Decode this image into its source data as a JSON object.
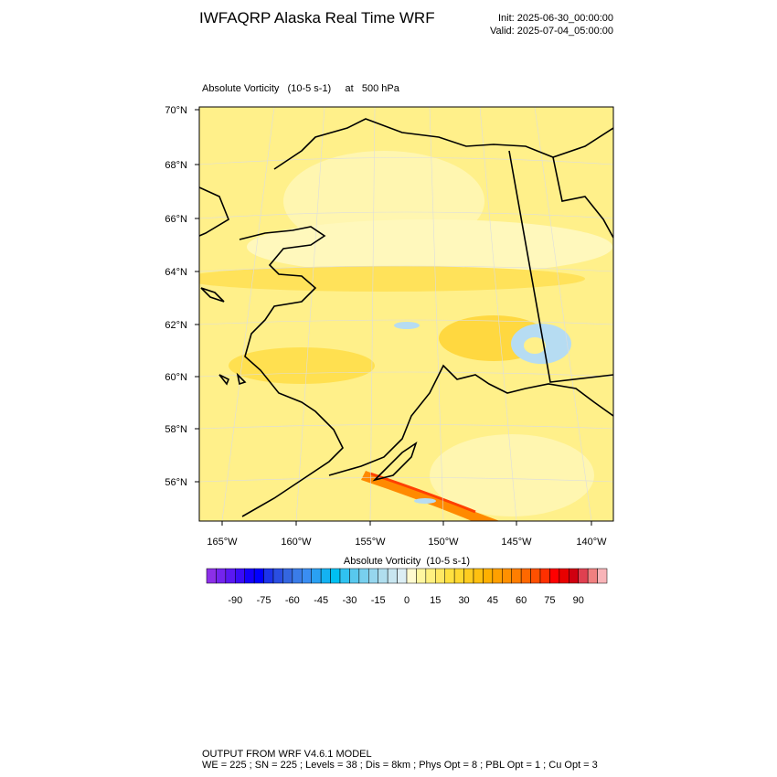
{
  "header": {
    "title": "IWFAQRP Alaska Real Time WRF",
    "init": "Init: 2025-06-30_00:00:00",
    "valid": "Valid: 2025-07-04_05:00:00"
  },
  "map": {
    "field_label": "Absolute Vorticity   (10-5 s-1)     at   500 hPa",
    "lat_labels": [
      "70°N",
      "68°N",
      "66°N",
      "64°N",
      "62°N",
      "60°N",
      "58°N",
      "56°N"
    ],
    "lon_labels": [
      "165°W",
      "160°W",
      "155°W",
      "150°W",
      "145°W",
      "140°W"
    ]
  },
  "colorbar": {
    "title": "Absolute Vorticity  (10-5 s-1)",
    "colors": [
      "#8c2fe8",
      "#7424ee",
      "#5a18f2",
      "#3a0cf6",
      "#1400fa",
      "#0000ff",
      "#1c34ea",
      "#2a4ee2",
      "#3466e0",
      "#3a7ce8",
      "#3a8ef2",
      "#2aa0f2",
      "#14b2f2",
      "#00c0f2",
      "#30c2f0",
      "#58c8ee",
      "#78cfee",
      "#96d6ee",
      "#b0deee",
      "#c8e6f0",
      "#dceef4",
      "#fffad0",
      "#fff6a0",
      "#fff080",
      "#ffe864",
      "#ffe040",
      "#ffd830",
      "#ffcc20",
      "#ffc010",
      "#ffb000",
      "#ffa000",
      "#ff9000",
      "#ff7e00",
      "#ff6800",
      "#ff5000",
      "#ff3000",
      "#ff0000",
      "#e80000",
      "#d00010",
      "#e04050",
      "#f08080",
      "#f8b4b8"
    ],
    "tick_labels": [
      -90,
      -75,
      -60,
      -45,
      -30,
      -15,
      0,
      15,
      30,
      45,
      60,
      75,
      90
    ]
  },
  "footer": {
    "line1": "OUTPUT FROM WRF V4.6.1 MODEL",
    "line2": "WE = 225 ; SN = 225 ; Levels = 38 ; Dis = 8km ; Phys Opt = 8 ; PBL Opt = 1 ; Cu Opt = 3"
  }
}
